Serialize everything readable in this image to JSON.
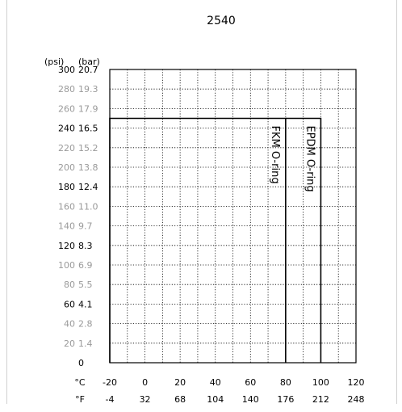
{
  "chart_data": {
    "type": "line",
    "title": "2540",
    "y_units_left": "(psi)",
    "y_units_right": "(bar)",
    "x_units_top": "°C",
    "x_units_bottom": "°F",
    "xlim": [
      -20,
      120
    ],
    "ylim": [
      0,
      300
    ],
    "x_ticks_c": [
      "-20",
      "0",
      "20",
      "40",
      "60",
      "80",
      "100",
      "120"
    ],
    "x_ticks_f": [
      "-4",
      "32",
      "68",
      "104",
      "140",
      "176",
      "212",
      "248"
    ],
    "y_ticks": [
      {
        "psi": "300",
        "bar": "20.7",
        "value": 300,
        "emphasis": true
      },
      {
        "psi": "280",
        "bar": "19.3",
        "value": 280,
        "emphasis": false
      },
      {
        "psi": "260",
        "bar": "17.9",
        "value": 260,
        "emphasis": false
      },
      {
        "psi": "240",
        "bar": "16.5",
        "value": 240,
        "emphasis": true
      },
      {
        "psi": "220",
        "bar": "15.2",
        "value": 220,
        "emphasis": false
      },
      {
        "psi": "200",
        "bar": "13.8",
        "value": 200,
        "emphasis": false
      },
      {
        "psi": "180",
        "bar": "12.4",
        "value": 180,
        "emphasis": true
      },
      {
        "psi": "160",
        "bar": "11.0",
        "value": 160,
        "emphasis": false
      },
      {
        "psi": "140",
        "bar": "9.7",
        "value": 140,
        "emphasis": false
      },
      {
        "psi": "120",
        "bar": "8.3",
        "value": 120,
        "emphasis": true
      },
      {
        "psi": "100",
        "bar": "6.9",
        "value": 100,
        "emphasis": false
      },
      {
        "psi": "80",
        "bar": "5.5",
        "value": 80,
        "emphasis": false
      },
      {
        "psi": "60",
        "bar": "4.1",
        "value": 60,
        "emphasis": true
      },
      {
        "psi": "40",
        "bar": "2.8",
        "value": 40,
        "emphasis": false
      },
      {
        "psi": "20",
        "bar": "1.4",
        "value": 20,
        "emphasis": false
      },
      {
        "psi": "",
        "bar": "0",
        "value": 0,
        "emphasis": true
      }
    ],
    "series": [
      {
        "name": "FKM O-ring",
        "x": [
          -20,
          -20,
          80,
          80
        ],
        "y": [
          0,
          250,
          250,
          0
        ]
      },
      {
        "name": "EPDM O-ring",
        "x": [
          80,
          100,
          100
        ],
        "y": [
          250,
          250,
          0
        ]
      }
    ],
    "grid": true,
    "colors": {
      "axis": "#000000",
      "faint_tick": "#9a9a9a"
    }
  }
}
